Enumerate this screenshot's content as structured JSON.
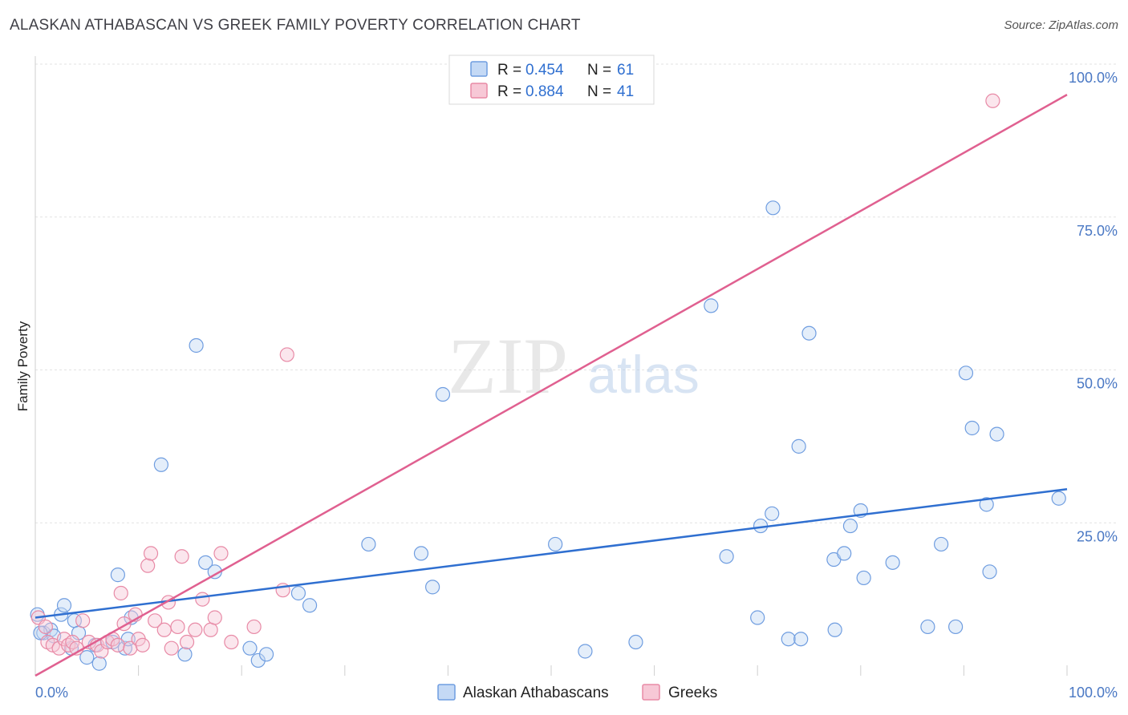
{
  "chart_data": {
    "type": "scatter",
    "title": "ALASKAN ATHABASCAN VS GREEK FAMILY POVERTY CORRELATION CHART",
    "source": "Source: ZipAtlas.com",
    "ylabel": "Family Poverty",
    "xlim": [
      0,
      100
    ],
    "ylim": [
      0,
      100
    ],
    "x_tick_labels": [
      "0.0%",
      "100.0%"
    ],
    "y_ticks": [
      {
        "value": 25,
        "label": "25.0%"
      },
      {
        "value": 50,
        "label": "50.0%"
      },
      {
        "value": 75,
        "label": "75.0%"
      },
      {
        "value": 100,
        "label": "100.0%"
      }
    ],
    "watermark": {
      "zip": "ZIP",
      "atlas": "atlas"
    },
    "series": [
      {
        "name": "Alaskan Athabascans",
        "color": "#6f9de0",
        "fill": "#c4d9f5",
        "line_color": "#2f6fd0",
        "r_label": "R =",
        "r_value": "0.454",
        "n_label": "N =",
        "n_value": "61",
        "trend": [
          [
            0,
            9.5
          ],
          [
            100,
            30.5
          ]
        ],
        "points": [
          [
            0.2,
            10
          ],
          [
            0.8,
            7
          ],
          [
            1.5,
            7.5
          ],
          [
            1.8,
            6.5
          ],
          [
            2.5,
            10
          ],
          [
            2.8,
            11.5
          ],
          [
            3.5,
            4.5
          ],
          [
            3.8,
            9
          ],
          [
            4.2,
            7
          ],
          [
            5,
            3
          ],
          [
            5.8,
            5
          ],
          [
            6.2,
            2
          ],
          [
            7.5,
            5.5
          ],
          [
            8,
            16.5
          ],
          [
            8.7,
            4.5
          ],
          [
            9,
            6
          ],
          [
            9.3,
            9.5
          ],
          [
            12.2,
            34.5
          ],
          [
            14.5,
            3.5
          ],
          [
            15.6,
            54
          ],
          [
            16.5,
            18.5
          ],
          [
            17.4,
            17
          ],
          [
            20.8,
            4.5
          ],
          [
            21.6,
            2.5
          ],
          [
            22.4,
            3.5
          ],
          [
            25.5,
            13.5
          ],
          [
            26.6,
            11.5
          ],
          [
            32.3,
            21.5
          ],
          [
            37.4,
            20
          ],
          [
            38.5,
            14.5
          ],
          [
            39.5,
            46
          ],
          [
            50.4,
            21.5
          ],
          [
            53.3,
            4
          ],
          [
            58.2,
            5.5
          ],
          [
            65.5,
            60.5
          ],
          [
            67,
            19.5
          ],
          [
            70,
            9.5
          ],
          [
            70.3,
            24.5
          ],
          [
            71.4,
            26.5
          ],
          [
            71.5,
            76.5
          ],
          [
            73,
            6
          ],
          [
            74,
            37.5
          ],
          [
            74.2,
            6
          ],
          [
            75,
            56
          ],
          [
            77.4,
            19
          ],
          [
            77.5,
            7.5
          ],
          [
            78.4,
            20
          ],
          [
            79,
            24.5
          ],
          [
            80,
            27
          ],
          [
            80.3,
            16
          ],
          [
            83.1,
            18.5
          ],
          [
            86.5,
            8
          ],
          [
            87.8,
            21.5
          ],
          [
            89.2,
            8
          ],
          [
            90.2,
            49.5
          ],
          [
            90.8,
            40.5
          ],
          [
            92.2,
            28
          ],
          [
            92.5,
            17
          ],
          [
            93.2,
            39.5
          ],
          [
            99.2,
            29
          ],
          [
            0.5,
            7
          ]
        ]
      },
      {
        "name": "Greeks",
        "color": "#e88aa6",
        "fill": "#f7c8d6",
        "line_color": "#e06090",
        "r_label": "R =",
        "r_value": "0.884",
        "n_label": "N =",
        "n_value": "41",
        "trend": [
          [
            0,
            0
          ],
          [
            100,
            95
          ]
        ],
        "points": [
          [
            0.3,
            9.5
          ],
          [
            1,
            8
          ],
          [
            1.2,
            5.5
          ],
          [
            1.7,
            5
          ],
          [
            2.3,
            4.5
          ],
          [
            2.8,
            6
          ],
          [
            3.2,
            5
          ],
          [
            3.6,
            5.5
          ],
          [
            4,
            4.5
          ],
          [
            4.6,
            9
          ],
          [
            5.2,
            5.5
          ],
          [
            6,
            5
          ],
          [
            6.4,
            4
          ],
          [
            7,
            5.5
          ],
          [
            7.5,
            6
          ],
          [
            8,
            5
          ],
          [
            8.3,
            13.5
          ],
          [
            8.6,
            8.5
          ],
          [
            9.2,
            4.5
          ],
          [
            9.7,
            10
          ],
          [
            10,
            6
          ],
          [
            10.4,
            5
          ],
          [
            10.9,
            18
          ],
          [
            11.2,
            20
          ],
          [
            11.6,
            9
          ],
          [
            12.5,
            7.5
          ],
          [
            12.9,
            12
          ],
          [
            13.2,
            4.5
          ],
          [
            13.8,
            8
          ],
          [
            14.2,
            19.5
          ],
          [
            14.7,
            5.5
          ],
          [
            15.5,
            7.5
          ],
          [
            16.2,
            12.5
          ],
          [
            17,
            7.5
          ],
          [
            17.4,
            9.5
          ],
          [
            18,
            20
          ],
          [
            19,
            5.5
          ],
          [
            21.2,
            8
          ],
          [
            24,
            14
          ],
          [
            24.4,
            52.5
          ],
          [
            92.8,
            94
          ]
        ]
      }
    ]
  }
}
